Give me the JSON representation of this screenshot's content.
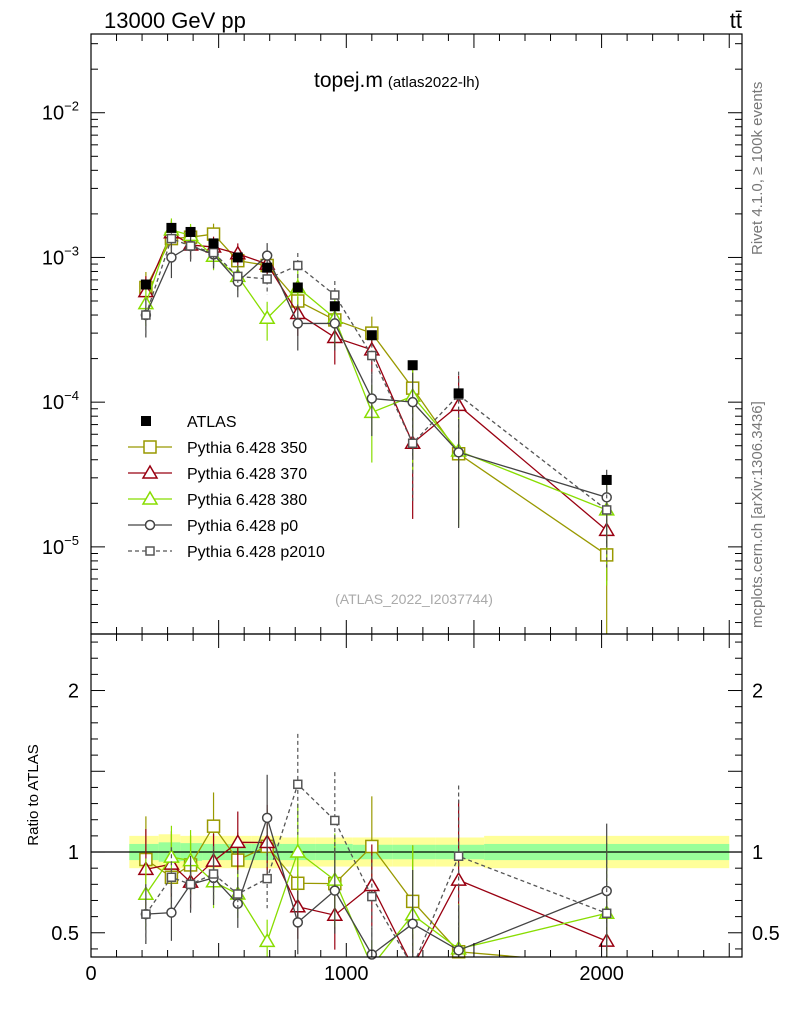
{
  "header": {
    "process": "13000 GeV pp",
    "channel": "tt̄"
  },
  "title": {
    "main": "topej.m",
    "sub": "(atlas2022-lh)"
  },
  "side_labels": {
    "rivet": "Rivet 4.1.0, ≥ 100k events",
    "mcplots": "mcplots.cern.ch [arXiv:1306.3436]"
  },
  "analysis_id": "(ATLAS_2022_I2037744)",
  "ratio_ylabel": "Ratio to ATLAS",
  "top_ticks": [
    {
      "base": "10",
      "exp": "−2",
      "value": 0.01
    },
    {
      "base": "10",
      "exp": "−3",
      "value": 0.001
    },
    {
      "base": "10",
      "exp": "−4",
      "value": 0.0001
    },
    {
      "base": "10",
      "exp": "−5",
      "value": 1e-05
    }
  ],
  "ratio_ticks": [
    {
      "label": "2",
      "value": 2
    },
    {
      "label": "1",
      "value": 1
    },
    {
      "label": "0.5",
      "value": 0.5
    }
  ],
  "x_ticks": [
    {
      "label": "0",
      "value": 0
    },
    {
      "label": "1000",
      "value": 1000
    },
    {
      "label": "2000",
      "value": 2000
    }
  ],
  "chart_data": {
    "type": "scatter",
    "title": "topej.m",
    "xlabel": "",
    "ylabel": "",
    "xlim": [
      0,
      2550
    ],
    "ylim": [
      2.5e-06,
      0.035
    ],
    "yscale": "log",
    "ratio_ylim": [
      0.35,
      2.35
    ],
    "x": [
      215,
      315,
      390,
      480,
      575,
      690,
      810,
      955,
      1100,
      1260,
      1440,
      2020
    ],
    "data": {
      "name": "ATLAS",
      "values": [
        0.00065,
        0.0016,
        0.0015,
        0.00125,
        0.001,
        0.00085,
        0.00062,
        0.00046,
        0.00029,
        0.00018,
        0.000115,
        2.9e-05
      ]
    },
    "band": {
      "edges": [
        150,
        265,
        350,
        435,
        525,
        630,
        750,
        880,
        1025,
        1180,
        1350,
        1540,
        2500
      ],
      "outer": [
        0.1,
        0.11,
        0.1,
        0.1,
        0.1,
        0.1,
        0.09,
        0.09,
        0.09,
        0.09,
        0.09,
        0.1
      ],
      "inner": [
        0.05,
        0.06,
        0.055,
        0.05,
        0.05,
        0.05,
        0.05,
        0.05,
        0.045,
        0.045,
        0.045,
        0.05
      ]
    },
    "series": [
      {
        "name": "Pythia 6.428 350",
        "color": "#999900",
        "marker": "square",
        "dashed": false,
        "values": [
          0.00062,
          0.00135,
          0.00138,
          0.00145,
          0.00095,
          0.00088,
          0.0005,
          0.00037,
          0.0003,
          0.000125,
          4.4e-05,
          8.8e-06
        ],
        "rel_err": [
          0.28,
          0.22,
          0.2,
          0.18,
          0.18,
          0.22,
          0.3,
          0.35,
          0.3,
          0.5,
          0.65,
          0.9
        ]
      },
      {
        "name": "Pythia 6.428 370",
        "color": "#990011",
        "marker": "triangle",
        "dashed": false,
        "values": [
          0.00058,
          0.00148,
          0.00122,
          0.00118,
          0.00106,
          0.0009,
          0.00041,
          0.00028,
          0.00023,
          5.2e-05,
          9.5e-05,
          1.3e-05
        ],
        "rel_err": [
          0.28,
          0.22,
          0.2,
          0.18,
          0.18,
          0.22,
          0.3,
          0.35,
          0.32,
          0.7,
          0.6,
          0.55
        ]
      },
      {
        "name": "Pythia 6.428 380",
        "color": "#88dd00",
        "marker": "triangle",
        "dashed": false,
        "values": [
          0.00048,
          0.00155,
          0.00142,
          0.00102,
          0.00074,
          0.00038,
          0.00062,
          0.00038,
          8.5e-05,
          0.00011,
          4.6e-05,
          1.8e-05
        ],
        "rel_err": [
          0.3,
          0.2,
          0.2,
          0.2,
          0.2,
          0.3,
          0.3,
          0.35,
          0.55,
          0.7,
          0.7,
          0.7
        ]
      },
      {
        "name": "Pythia 6.428 p0",
        "color": "#444444",
        "marker": "circle",
        "dashed": false,
        "values": [
          0.0004,
          0.001,
          0.0012,
          0.00105,
          0.00068,
          0.00103,
          0.00035,
          0.00035,
          0.000106,
          0.0001,
          4.5e-05,
          2.2e-05
        ],
        "rel_err": [
          0.3,
          0.28,
          0.22,
          0.2,
          0.22,
          0.22,
          0.35,
          0.35,
          0.45,
          0.6,
          0.7,
          0.55
        ]
      },
      {
        "name": "Pythia 6.428 p2010",
        "color": "#555555",
        "marker": "square-small",
        "dashed": true,
        "values": [
          0.0004,
          0.00135,
          0.0012,
          0.00108,
          0.00074,
          0.00071,
          0.00088,
          0.00055,
          0.00021,
          5.2e-05,
          0.000112,
          1.8e-05
        ],
        "rel_err": [
          0.3,
          0.22,
          0.2,
          0.2,
          0.2,
          0.22,
          0.22,
          0.25,
          0.35,
          0.6,
          0.45,
          0.6
        ]
      }
    ]
  }
}
